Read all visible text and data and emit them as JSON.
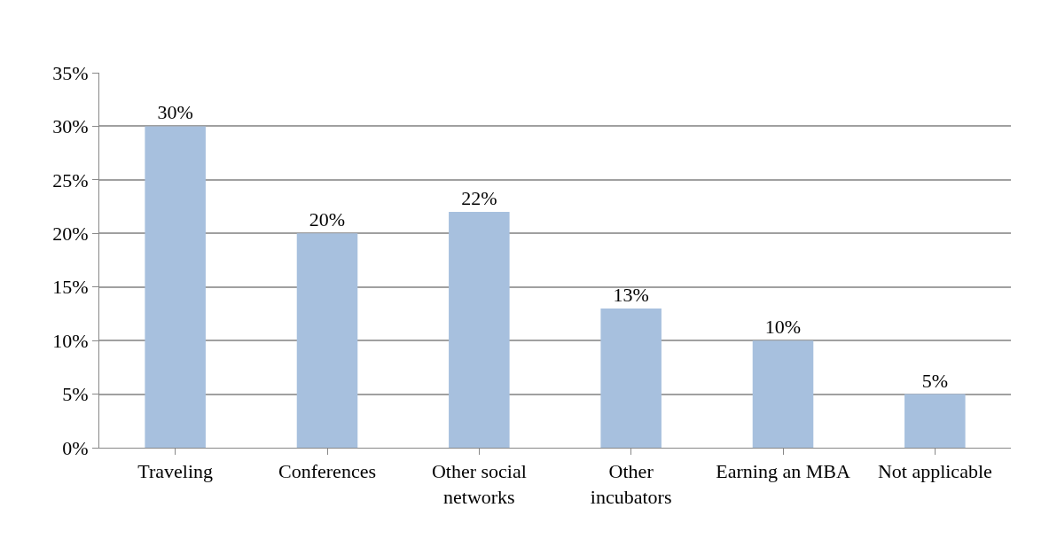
{
  "chart_data": {
    "type": "bar",
    "categories": [
      "Traveling",
      "Conferences",
      "Other social networks",
      "Other incubators",
      "Earning an MBA",
      "Not applicable"
    ],
    "values": [
      30,
      20,
      22,
      13,
      10,
      5
    ],
    "value_labels": [
      "30%",
      "20%",
      "22%",
      "13%",
      "10%",
      "5%"
    ],
    "color": "#a7c0de",
    "ylim": [
      0,
      35
    ],
    "yticks": [
      {
        "value": 0,
        "label": "0%"
      },
      {
        "value": 5,
        "label": "5%"
      },
      {
        "value": 10,
        "label": "10%"
      },
      {
        "value": 15,
        "label": "15%"
      },
      {
        "value": 20,
        "label": "20%"
      },
      {
        "value": 25,
        "label": "25%"
      },
      {
        "value": 30,
        "label": "30%"
      },
      {
        "value": 35,
        "label": "35%"
      }
    ],
    "grid": "y",
    "legend": false
  }
}
